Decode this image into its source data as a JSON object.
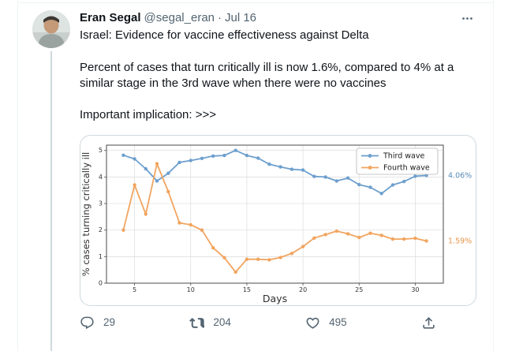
{
  "tweet": {
    "author": "Eran Segal",
    "handle": "@segal_eran",
    "separator": "·",
    "date": "Jul 16",
    "line1": "Israel: Evidence for vaccine effectiveness against Delta",
    "body": "Percent of cases that turn critically ill is now 1.6%, compared to 4% at a similar stage in the 3rd wave when there were no vaccines",
    "implication": "Important implication: >>>",
    "actions": {
      "reply_count": "29",
      "retweet_count": "204",
      "like_count": "495"
    }
  },
  "colors": {
    "third_wave": "#6d9fce",
    "fourth_wave": "#f2a45f",
    "grid": "#dcdcdc",
    "spine": "#4a4a4a",
    "tick_text": "#333333",
    "muted": "#536471",
    "card_border": "#cfd9de"
  },
  "chart_data": {
    "type": "line",
    "x": [
      4,
      5,
      6,
      7,
      8,
      9,
      10,
      11,
      12,
      13,
      14,
      15,
      16,
      17,
      18,
      19,
      20,
      21,
      22,
      23,
      24,
      25,
      26,
      27,
      28,
      29,
      30,
      31
    ],
    "series": [
      {
        "name": "Third wave",
        "color": "#6d9fce",
        "values": [
          4.82,
          4.68,
          4.31,
          3.85,
          4.14,
          4.55,
          4.62,
          4.7,
          4.79,
          4.81,
          5.0,
          4.81,
          4.71,
          4.48,
          4.38,
          4.29,
          4.26,
          4.02,
          4.0,
          3.85,
          3.96,
          3.71,
          3.61,
          3.38,
          3.7,
          3.83,
          4.03,
          4.06
        ]
      },
      {
        "name": "Fourth wave",
        "color": "#f2a45f",
        "values": [
          2.0,
          3.7,
          2.6,
          4.5,
          3.45,
          2.27,
          2.2,
          2.0,
          1.33,
          0.96,
          0.42,
          0.9,
          0.9,
          0.88,
          0.97,
          1.12,
          1.38,
          1.7,
          1.83,
          1.96,
          1.86,
          1.72,
          1.88,
          1.8,
          1.66,
          1.66,
          1.69,
          1.59
        ]
      }
    ],
    "title": "",
    "xlabel": "Days",
    "ylabel": "% cases turning critically ill",
    "xlim": [
      2.5,
      32.5
    ],
    "ylim": [
      0,
      5.2
    ],
    "xticks": [
      5,
      10,
      15,
      20,
      25,
      30
    ],
    "yticks": [
      0,
      1,
      2,
      3,
      4,
      5
    ],
    "grid": true,
    "legend_position": "upper right",
    "annotations": [
      {
        "text": "4.06%",
        "y": 4.06,
        "color": "#5b8db8"
      },
      {
        "text": "1.59%",
        "y": 1.59,
        "color": "#e8954a"
      }
    ]
  }
}
